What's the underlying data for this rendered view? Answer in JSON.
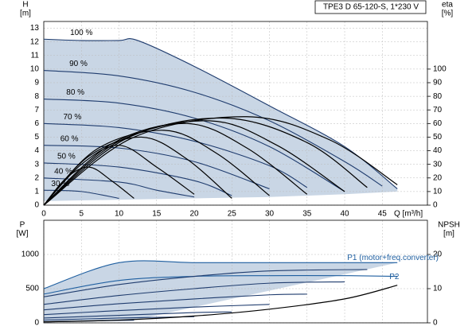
{
  "chart_data": [
    {
      "type": "line",
      "title": "TPE3 D 65-120-S, 1*230 V",
      "y_label": "H",
      "y_unit": "[m]",
      "y2_label": "eta",
      "y2_unit": "[%]",
      "x_label": "Q [m³/h]",
      "xlim": [
        0,
        51
      ],
      "xticks": [
        0,
        5,
        10,
        15,
        20,
        25,
        30,
        35,
        40,
        45
      ],
      "ylim": [
        0,
        13.5
      ],
      "yticks": [
        0,
        1,
        2,
        3,
        4,
        5,
        6,
        7,
        8,
        9,
        10,
        11,
        12,
        13
      ],
      "y2lim": [
        0,
        135
      ],
      "y2ticks": [
        0,
        10,
        20,
        30,
        40,
        50,
        60,
        70,
        80,
        90,
        100
      ],
      "grid": true,
      "area_color": "#c9d6e5",
      "range_lower": {
        "x": [
          0,
          10,
          20,
          30,
          40,
          47
        ],
        "values": [
          0.3,
          0.4,
          0.5,
          0.6,
          0.8,
          1.0
        ]
      },
      "series": [
        {
          "name": "100 %",
          "color": "#1f3c6e",
          "x": [
            0,
            5,
            10,
            12.5,
            20,
            30,
            40,
            47
          ],
          "values": [
            12.2,
            12.1,
            12.1,
            12.1,
            10.2,
            7.3,
            4.3,
            1.2
          ]
        },
        {
          "name": "90 %",
          "color": "#1f3c6e",
          "x": [
            0,
            10,
            20,
            30,
            40,
            45
          ],
          "values": [
            9.9,
            9.5,
            8.3,
            6.2,
            3.2,
            1.4
          ]
        },
        {
          "name": "80 %",
          "color": "#1f3c6e",
          "x": [
            0,
            10,
            20,
            30,
            40
          ],
          "values": [
            7.8,
            7.5,
            6.4,
            4.3,
            1.0
          ]
        },
        {
          "name": "70 %",
          "color": "#1f3c6e",
          "x": [
            0,
            10,
            20,
            30,
            35
          ],
          "values": [
            6.0,
            5.7,
            4.7,
            2.9,
            1.3
          ]
        },
        {
          "name": "60 %",
          "color": "#1f3c6e",
          "x": [
            0,
            10,
            20,
            30
          ],
          "values": [
            4.4,
            4.2,
            3.2,
            1.2
          ]
        },
        {
          "name": "50 %",
          "color": "#1f3c6e",
          "x": [
            0,
            10,
            20,
            25
          ],
          "values": [
            3.1,
            2.8,
            1.8,
            0.7
          ]
        },
        {
          "name": "40 %",
          "color": "#1f3c6e",
          "x": [
            0,
            10,
            15,
            20
          ],
          "values": [
            2.0,
            1.7,
            1.1,
            0.6
          ]
        },
        {
          "name": "30 %",
          "color": "#1f3c6e",
          "x": [
            0,
            5,
            10
          ],
          "values": [
            1.1,
            1.0,
            0.5
          ]
        },
        {
          "color": "#000000",
          "axis": "y2",
          "x": [
            0,
            12,
            27,
            38,
            47
          ],
          "values": [
            0,
            50,
            65,
            48,
            15
          ]
        },
        {
          "color": "#000000",
          "axis": "y2",
          "x": [
            0,
            11,
            24,
            35,
            43
          ],
          "values": [
            0,
            49,
            64,
            46,
            13
          ]
        },
        {
          "color": "#000000",
          "axis": "y2",
          "x": [
            0,
            10,
            22,
            31,
            40
          ],
          "values": [
            0,
            47,
            62,
            44,
            10
          ]
        },
        {
          "color": "#000000",
          "axis": "y2",
          "x": [
            0,
            9,
            19,
            27,
            35
          ],
          "values": [
            0,
            45,
            60,
            42,
            8
          ]
        },
        {
          "color": "#000000",
          "axis": "y2",
          "x": [
            0,
            7,
            16,
            23,
            30
          ],
          "values": [
            0,
            41,
            55,
            38,
            7
          ]
        },
        {
          "color": "#000000",
          "axis": "y2",
          "x": [
            0,
            6,
            13,
            19,
            25
          ],
          "values": [
            0,
            36,
            50,
            34,
            5
          ]
        },
        {
          "color": "#000000",
          "axis": "y2",
          "x": [
            0,
            5,
            10,
            15,
            20
          ],
          "values": [
            0,
            30,
            44,
            28,
            8
          ]
        },
        {
          "color": "#000000",
          "axis": "y2",
          "x": [
            0,
            3,
            6,
            9,
            12
          ],
          "values": [
            0,
            20,
            28,
            18,
            5
          ]
        }
      ]
    },
    {
      "type": "line",
      "y_label": "P",
      "y_unit": "[W]",
      "y2_label": "NPSH",
      "y2_unit": "[m]",
      "xlim": [
        0,
        51
      ],
      "xticks": [
        0,
        5,
        10,
        15,
        20,
        25,
        30,
        35,
        40,
        45
      ],
      "ylim": [
        0,
        1500
      ],
      "yticks": [
        0,
        500,
        1000
      ],
      "y2lim": [
        0,
        30
      ],
      "y2ticks": [
        0,
        10,
        20
      ],
      "grid": true,
      "area_color": "#c9d6e5",
      "range_lower": {
        "x": [
          0,
          5,
          10,
          12
        ],
        "values": [
          15,
          25,
          35,
          38
        ]
      },
      "series": [
        {
          "name": "P1 (motor+freq.converter)",
          "color": "#1f5fa0",
          "x": [
            0,
            10,
            20,
            30,
            40,
            47
          ],
          "values": [
            500,
            880,
            880,
            880,
            880,
            880
          ]
        },
        {
          "name": "P2",
          "color": "#1f5fa0",
          "x": [
            0,
            10,
            20,
            30,
            40,
            47
          ],
          "values": [
            420,
            620,
            680,
            690,
            690,
            680
          ]
        },
        {
          "color": "#1f3c6e",
          "x": [
            0,
            10,
            20,
            30,
            43
          ],
          "values": [
            380,
            560,
            680,
            760,
            780
          ]
        },
        {
          "color": "#1f3c6e",
          "x": [
            0,
            10,
            20,
            30,
            40
          ],
          "values": [
            270,
            400,
            500,
            580,
            600
          ]
        },
        {
          "color": "#1f3c6e",
          "x": [
            0,
            10,
            20,
            30,
            35
          ],
          "values": [
            190,
            280,
            350,
            410,
            420
          ]
        },
        {
          "color": "#1f3c6e",
          "x": [
            0,
            10,
            20,
            30
          ],
          "values": [
            120,
            180,
            230,
            270
          ]
        },
        {
          "color": "#1f3c6e",
          "x": [
            0,
            10,
            20,
            25
          ],
          "values": [
            70,
            110,
            150,
            160
          ]
        },
        {
          "color": "#1f3c6e",
          "x": [
            0,
            10,
            20
          ],
          "values": [
            40,
            70,
            90
          ]
        },
        {
          "color": "#1f3c6e",
          "x": [
            0,
            5,
            10,
            12
          ],
          "values": [
            15,
            25,
            35,
            38
          ]
        },
        {
          "color": "#000000",
          "axis": "y2",
          "x": [
            0,
            10,
            20,
            30,
            40,
            47
          ],
          "values": [
            0.3,
            0.8,
            2,
            4,
            7,
            11
          ]
        }
      ]
    }
  ]
}
